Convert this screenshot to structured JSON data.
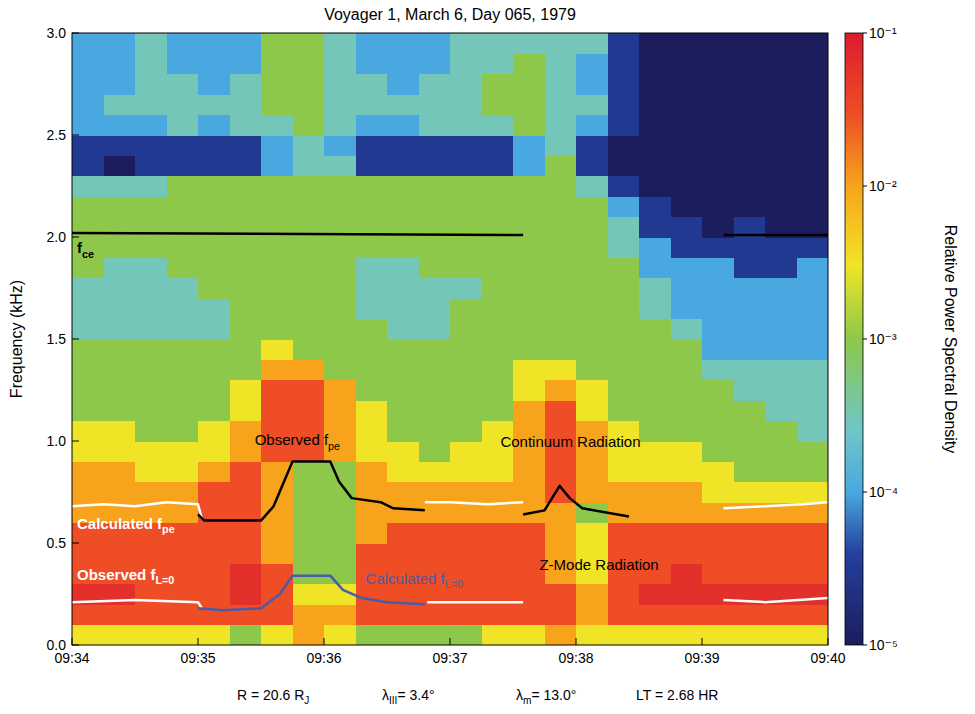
{
  "chart_data": {
    "type": "heatmap",
    "title": "Voyager 1, March 6, Day 065, 1979",
    "y_label": "Frequency (kHz)",
    "xlim": [
      0,
      6
    ],
    "xticks": [
      {
        "value": 0,
        "label": "09:34"
      },
      {
        "value": 1,
        "label": "09:35"
      },
      {
        "value": 2,
        "label": "09:36"
      },
      {
        "value": 3,
        "label": "09:37"
      },
      {
        "value": 4,
        "label": "09:38"
      },
      {
        "value": 5,
        "label": "09:39"
      },
      {
        "value": 6,
        "label": "09:40"
      }
    ],
    "ylim": [
      0,
      3
    ],
    "yticks": [
      {
        "value": 0,
        "label": "0.0"
      },
      0.5,
      {
        "value": 1,
        "label": "1.0"
      },
      1.5,
      {
        "value": 2,
        "label": "2.0"
      },
      2.5,
      {
        "value": 3,
        "label": "3.0"
      }
    ],
    "x_bins": [
      0,
      0.25,
      0.5,
      0.75,
      1,
      1.25,
      1.5,
      1.75,
      2,
      2.25,
      2.5,
      2.75,
      3,
      3.25,
      3.5,
      3.75,
      4,
      4.25,
      4.5,
      4.75,
      5,
      5.25,
      5.5,
      5.75,
      6
    ],
    "y_bins": [
      0,
      0.1,
      0.2,
      0.3,
      0.4,
      0.5,
      0.6,
      0.7,
      0.8,
      0.9,
      1,
      1.1,
      1.2,
      1.3,
      1.4,
      1.5,
      1.6,
      1.7,
      1.8,
      1.9,
      2,
      2.1,
      2.2,
      2.3,
      2.4,
      2.5,
      2.6,
      2.7,
      2.8,
      2.9,
      3
    ],
    "cells": [
      [
        0.003,
        0.003,
        0.003,
        0.003,
        0.003,
        0.001,
        0.003,
        0.01,
        0.003,
        0.001,
        0.001,
        0.001,
        0.001,
        0.003,
        0.003,
        0.01,
        0.003,
        0.003,
        0.003,
        0.003,
        0.003,
        0.003,
        0.003,
        0.003
      ],
      [
        0.03,
        0.03,
        0.03,
        0.03,
        0.03,
        0.03,
        0.03,
        0.01,
        0.01,
        0.03,
        0.03,
        0.03,
        0.03,
        0.03,
        0.03,
        0.03,
        0.01,
        0.03,
        0.03,
        0.03,
        0.03,
        0.03,
        0.03,
        0.03
      ],
      [
        0.06,
        0.06,
        0.03,
        0.03,
        0.03,
        0.06,
        0.03,
        0.003,
        0.003,
        0.03,
        0.03,
        0.03,
        0.03,
        0.03,
        0.03,
        0.03,
        0.01,
        0.03,
        0.06,
        0.06,
        0.06,
        0.06,
        0.06,
        0.06
      ],
      [
        0.03,
        0.03,
        0.03,
        0.03,
        0.03,
        0.06,
        0.03,
        0.001,
        0.001,
        0.03,
        0.03,
        0.03,
        0.03,
        0.03,
        0.03,
        0.01,
        0.003,
        0.03,
        0.03,
        0.06,
        0.03,
        0.03,
        0.03,
        0.03
      ],
      [
        0.03,
        0.03,
        0.03,
        0.03,
        0.03,
        0.03,
        0.01,
        0.001,
        0.001,
        0.03,
        0.03,
        0.03,
        0.03,
        0.03,
        0.03,
        0.01,
        0.003,
        0.03,
        0.03,
        0.03,
        0.03,
        0.03,
        0.03,
        0.03
      ],
      [
        0.03,
        0.03,
        0.03,
        0.03,
        0.03,
        0.03,
        0.01,
        0.001,
        0.001,
        0.01,
        0.03,
        0.03,
        0.03,
        0.03,
        0.03,
        0.01,
        0.003,
        0.03,
        0.03,
        0.03,
        0.03,
        0.03,
        0.03,
        0.03
      ],
      [
        0.01,
        0.01,
        0.01,
        0.01,
        0.03,
        0.03,
        0.01,
        0.001,
        0.001,
        0.01,
        0.01,
        0.01,
        0.01,
        0.01,
        0.01,
        0.01,
        0.001,
        0.01,
        0.01,
        0.01,
        0.01,
        0.01,
        0.01,
        0.01
      ],
      [
        0.01,
        0.01,
        0.01,
        0.01,
        0.03,
        0.03,
        0.01,
        0.001,
        0.001,
        0.01,
        0.01,
        0.01,
        0.01,
        0.01,
        0.01,
        0.03,
        0.01,
        0.01,
        0.01,
        0.01,
        0.003,
        0.003,
        0.003,
        0.003
      ],
      [
        0.01,
        0.01,
        0.003,
        0.003,
        0.01,
        0.03,
        0.01,
        0.001,
        0.001,
        0.01,
        0.003,
        0.003,
        0.003,
        0.003,
        0.01,
        0.03,
        0.01,
        0.003,
        0.003,
        0.003,
        0.003,
        0.001,
        0.001,
        0.001
      ],
      [
        0.003,
        0.003,
        0.003,
        0.003,
        0.003,
        0.01,
        0.03,
        0.03,
        0.01,
        0.003,
        0.003,
        0.001,
        0.003,
        0.003,
        0.01,
        0.03,
        0.01,
        0.003,
        0.003,
        0.003,
        0.001,
        0.001,
        0.001,
        0.001
      ],
      [
        0.003,
        0.003,
        0.001,
        0.001,
        0.003,
        0.01,
        0.03,
        0.03,
        0.01,
        0.003,
        0.001,
        0.001,
        0.001,
        0.003,
        0.01,
        0.03,
        0.01,
        0.003,
        0.001,
        0.001,
        0.001,
        0.001,
        0.001,
        0.0003
      ],
      [
        0.001,
        0.001,
        0.001,
        0.001,
        0.001,
        0.003,
        0.03,
        0.03,
        0.01,
        0.003,
        0.001,
        0.001,
        0.001,
        0.001,
        0.01,
        0.03,
        0.003,
        0.001,
        0.001,
        0.001,
        0.001,
        0.001,
        0.0003,
        0.0003
      ],
      [
        0.001,
        0.001,
        0.001,
        0.001,
        0.001,
        0.003,
        0.03,
        0.03,
        0.01,
        0.001,
        0.001,
        0.001,
        0.001,
        0.001,
        0.003,
        0.01,
        0.003,
        0.001,
        0.001,
        0.001,
        0.001,
        0.0003,
        0.0003,
        0.0003
      ],
      [
        0.001,
        0.001,
        0.001,
        0.001,
        0.001,
        0.001,
        0.01,
        0.01,
        0.001,
        0.001,
        0.001,
        0.001,
        0.001,
        0.001,
        0.003,
        0.003,
        0.001,
        0.001,
        0.001,
        0.001,
        0.0003,
        0.0003,
        0.0003,
        0.0003
      ],
      [
        0.001,
        0.001,
        0.001,
        0.001,
        0.001,
        0.001,
        0.003,
        0.001,
        0.001,
        0.001,
        0.001,
        0.001,
        0.001,
        0.001,
        0.001,
        0.001,
        0.001,
        0.001,
        0.001,
        0.001,
        0.0001,
        0.0001,
        0.0001,
        0.0001
      ],
      [
        0.0003,
        0.0003,
        0.0003,
        0.0003,
        0.0003,
        0.001,
        0.001,
        0.001,
        0.001,
        0.001,
        0.0003,
        0.0003,
        0.001,
        0.001,
        0.001,
        0.001,
        0.001,
        0.001,
        0.001,
        0.0003,
        0.0001,
        0.0001,
        0.0001,
        0.0001
      ],
      [
        0.0003,
        0.0003,
        0.0003,
        0.0003,
        0.0003,
        0.001,
        0.001,
        0.001,
        0.001,
        0.0003,
        0.0003,
        0.0003,
        0.001,
        0.001,
        0.001,
        0.001,
        0.001,
        0.001,
        0.0003,
        0.0001,
        0.0001,
        0.0001,
        0.0001,
        0.0001
      ],
      [
        0.0003,
        0.0003,
        0.0003,
        0.0003,
        0.001,
        0.001,
        0.001,
        0.001,
        0.001,
        0.0003,
        0.0003,
        0.0003,
        0.0003,
        0.001,
        0.001,
        0.001,
        0.001,
        0.001,
        0.0003,
        0.0001,
        0.0001,
        0.0001,
        0.0001,
        0.0001
      ],
      [
        0.001,
        0.0003,
        0.0003,
        0.001,
        0.001,
        0.001,
        0.001,
        0.001,
        0.001,
        0.0003,
        0.0003,
        0.001,
        0.001,
        0.001,
        0.001,
        0.001,
        0.001,
        0.001,
        0.0001,
        0.0001,
        0.0001,
        3e-05,
        3e-05,
        0.0001
      ],
      [
        0.001,
        0.001,
        0.001,
        0.001,
        0.001,
        0.001,
        0.001,
        0.001,
        0.001,
        0.001,
        0.001,
        0.001,
        0.001,
        0.001,
        0.001,
        0.001,
        0.001,
        0.0003,
        0.0001,
        3e-05,
        3e-05,
        3e-05,
        3e-05,
        3e-05
      ],
      [
        0.001,
        0.001,
        0.001,
        0.001,
        0.001,
        0.001,
        0.001,
        0.001,
        0.001,
        0.001,
        0.001,
        0.001,
        0.001,
        0.001,
        0.001,
        0.001,
        0.001,
        0.0003,
        3e-05,
        3e-05,
        1e-05,
        3e-05,
        1e-05,
        1e-05
      ],
      [
        0.001,
        0.001,
        0.001,
        0.001,
        0.001,
        0.001,
        0.001,
        0.001,
        0.001,
        0.001,
        0.001,
        0.001,
        0.001,
        0.001,
        0.001,
        0.001,
        0.001,
        0.0001,
        3e-05,
        1e-05,
        1e-05,
        1e-05,
        1e-05,
        1e-05
      ],
      [
        0.0003,
        0.0003,
        0.0003,
        0.001,
        0.001,
        0.001,
        0.001,
        0.001,
        0.001,
        0.001,
        0.001,
        0.001,
        0.001,
        0.001,
        0.001,
        0.001,
        0.0003,
        3e-05,
        1e-05,
        1e-05,
        1e-05,
        1e-05,
        1e-05,
        1e-05
      ],
      [
        3e-05,
        1e-05,
        3e-05,
        3e-05,
        3e-05,
        3e-05,
        0.0001,
        0.0003,
        0.0003,
        3e-05,
        3e-05,
        3e-05,
        3e-05,
        3e-05,
        0.0001,
        0.001,
        3e-05,
        1e-05,
        1e-05,
        1e-05,
        1e-05,
        1e-05,
        1e-05,
        1e-05
      ],
      [
        3e-05,
        3e-05,
        3e-05,
        3e-05,
        3e-05,
        3e-05,
        0.0001,
        0.0003,
        0.0001,
        3e-05,
        3e-05,
        3e-05,
        3e-05,
        3e-05,
        0.0001,
        0.0003,
        3e-05,
        1e-05,
        1e-05,
        1e-05,
        1e-05,
        1e-05,
        1e-05,
        1e-05
      ],
      [
        0.0001,
        0.0001,
        0.0001,
        0.0003,
        0.0001,
        0.0003,
        0.0003,
        0.001,
        0.0003,
        0.0001,
        0.0001,
        0.0003,
        0.0003,
        0.0003,
        0.001,
        0.0003,
        0.0001,
        3e-05,
        1e-05,
        1e-05,
        1e-05,
        1e-05,
        1e-05,
        1e-05
      ],
      [
        0.0001,
        0.0003,
        0.0003,
        0.0003,
        0.0003,
        0.0003,
        0.001,
        0.001,
        0.0003,
        0.0003,
        0.0003,
        0.0003,
        0.0003,
        0.001,
        0.001,
        0.0003,
        0.0003,
        3e-05,
        1e-05,
        1e-05,
        1e-05,
        1e-05,
        1e-05,
        1e-05
      ],
      [
        0.0001,
        0.0001,
        0.0003,
        0.0003,
        0.0001,
        0.0003,
        0.001,
        0.001,
        0.0003,
        0.0003,
        0.0001,
        0.0003,
        0.0003,
        0.001,
        0.001,
        0.0003,
        0.0001,
        3e-05,
        1e-05,
        1e-05,
        1e-05,
        1e-05,
        1e-05,
        1e-05
      ],
      [
        0.0001,
        0.0001,
        0.0003,
        0.0001,
        0.0001,
        0.0001,
        0.001,
        0.001,
        0.0003,
        0.0001,
        0.0001,
        0.0001,
        0.0003,
        0.0003,
        0.001,
        0.0003,
        0.0001,
        3e-05,
        1e-05,
        1e-05,
        1e-05,
        1e-05,
        1e-05,
        1e-05
      ],
      [
        0.0001,
        0.0001,
        0.0003,
        0.0001,
        0.0001,
        0.0001,
        0.001,
        0.001,
        0.0003,
        0.0001,
        0.0001,
        0.0001,
        0.0003,
        0.0003,
        0.0003,
        0.0003,
        0.0003,
        3e-05,
        1e-05,
        1e-05,
        1e-05,
        1e-05,
        1e-05,
        1e-05
      ]
    ],
    "clim": [
      1e-05,
      0.1
    ],
    "cticks": [
      {
        "value": 1e-05,
        "label": "10⁻⁵"
      },
      {
        "value": 0.0001,
        "label": "10⁻⁴"
      },
      {
        "value": 0.001,
        "label": "10⁻³"
      },
      {
        "value": 0.01,
        "label": "10⁻²"
      },
      {
        "value": 0.1,
        "label": "10⁻¹"
      }
    ],
    "colorbar_label": "Relative Power Spectral Density",
    "series": [
      {
        "type": "line",
        "color": "#000000",
        "x": [
          0,
          3.58,
          4.5,
          5.17,
          6
        ],
        "values": [
          2.02,
          2.01,
          null,
          2.01,
          2.01
        ]
      },
      {
        "type": "line",
        "color": "#ffffff",
        "x": [
          0,
          0.25,
          0.5,
          0.75,
          1.0,
          1.03,
          2.0,
          2.8,
          3.0,
          3.3,
          3.58,
          4.3,
          5.17,
          5.5,
          5.8,
          6.0
        ],
        "values": [
          0.68,
          0.69,
          0.68,
          0.7,
          0.69,
          0.62,
          null,
          0.7,
          0.7,
          0.69,
          0.7,
          null,
          0.67,
          0.68,
          0.69,
          0.7
        ]
      },
      {
        "type": "line",
        "color": "#000000",
        "x": [
          1.0,
          1.05,
          1.5,
          1.6,
          1.75,
          2.05,
          2.12,
          2.22,
          2.45,
          2.55,
          2.8,
          3.2,
          3.58,
          3.75,
          3.87,
          3.95,
          4.05,
          4.42
        ],
        "values": [
          0.64,
          0.61,
          0.61,
          0.68,
          0.9,
          0.9,
          0.8,
          0.72,
          0.7,
          0.67,
          0.66,
          null,
          0.64,
          0.66,
          0.78,
          0.72,
          0.67,
          0.63
        ]
      },
      {
        "type": "line",
        "color": "#ffffff",
        "x": [
          0,
          0.5,
          1.0,
          1.03,
          1.5,
          2.82,
          3.0,
          3.58,
          4.3,
          5.17,
          5.5,
          6.0
        ],
        "values": [
          0.21,
          0.22,
          0.21,
          0.18,
          null,
          0.21,
          0.21,
          0.21,
          null,
          0.22,
          0.21,
          0.23
        ]
      },
      {
        "type": "line",
        "color": "#4a5ba8",
        "x": [
          1.0,
          1.2,
          1.5,
          1.65,
          1.75,
          2.05,
          2.15,
          2.3,
          2.5,
          2.8
        ],
        "values": [
          0.18,
          0.17,
          0.18,
          0.25,
          0.34,
          0.34,
          0.27,
          0.23,
          0.21,
          0.2
        ]
      }
    ],
    "annotations": [
      {
        "text": "f",
        "sub": "ce",
        "color": "#000000"
      },
      {
        "text": "Calculated f",
        "sub": "pe",
        "color": "#ffffff"
      },
      {
        "text": "Observed f",
        "sub": "L=0",
        "color": "#ffffff"
      },
      {
        "text": "Observed f",
        "sub": "pe",
        "color": "#000000"
      },
      {
        "text": "Continuum Radiation",
        "color": "#000000"
      },
      {
        "text": "Calculated f",
        "sub": "L=0",
        "color": "#4a5ba8"
      },
      {
        "text": "Z-Mode Radiation",
        "color": "#000000"
      }
    ],
    "footer": [
      {
        "text": "R = 20.6 R",
        "sub": "J"
      },
      {
        "text": "λ",
        "sub": "III",
        "after": "= 3.4°"
      },
      {
        "text": "λ",
        "sub": "m",
        "after": "= 13.0°"
      },
      {
        "text": "LT = 2.68 HR"
      }
    ]
  }
}
